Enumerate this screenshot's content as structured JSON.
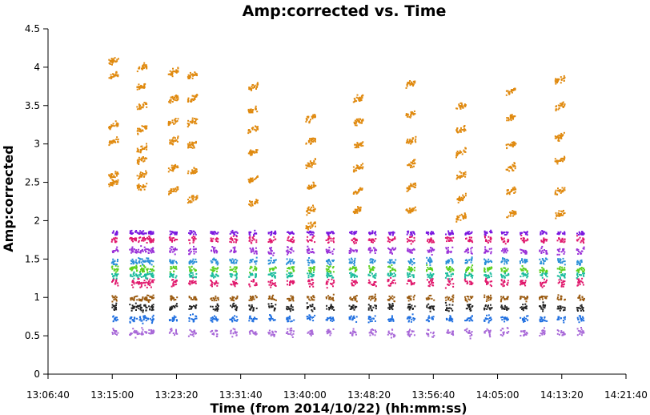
{
  "chart_data": {
    "type": "scatter",
    "title": "Amp:corrected vs. Time",
    "xlabel": "Time (from 2014/10/22) (hh:mm:ss)",
    "ylabel": "Amp:corrected",
    "xlim": [
      "13:06:40",
      "14:21:40"
    ],
    "ylim": [
      0,
      4.5
    ],
    "grid": false,
    "legend": "none",
    "x_ticks": [
      "13:06:40",
      "13:15:00",
      "13:23:20",
      "13:31:40",
      "13:40:00",
      "13:48:20",
      "13:56:40",
      "14:05:00",
      "14:13:20",
      "14:21:40"
    ],
    "y_ticks": [
      "0",
      "0.5",
      "1",
      "1.5",
      "2",
      "2.5",
      "3",
      "3.5",
      "4",
      "4.5"
    ],
    "scans": [
      {
        "start": "13:14:50",
        "end": "13:15:20"
      },
      {
        "start": "13:17:10",
        "end": "13:20:20"
      },
      {
        "start": "13:22:20",
        "end": "13:23:20"
      },
      {
        "start": "13:24:50",
        "end": "13:25:50"
      },
      {
        "start": "13:27:40",
        "end": "13:28:40"
      },
      {
        "start": "13:30:10",
        "end": "13:31:10"
      },
      {
        "start": "13:32:40",
        "end": "13:33:40"
      },
      {
        "start": "13:35:10",
        "end": "13:36:10"
      },
      {
        "start": "13:37:30",
        "end": "13:38:30"
      },
      {
        "start": "13:40:10",
        "end": "13:41:10"
      },
      {
        "start": "13:42:40",
        "end": "13:43:40"
      },
      {
        "start": "13:45:40",
        "end": "13:46:40"
      },
      {
        "start": "13:48:10",
        "end": "13:49:10"
      },
      {
        "start": "13:50:40",
        "end": "13:51:40"
      },
      {
        "start": "13:53:10",
        "end": "13:54:10"
      },
      {
        "start": "13:55:40",
        "end": "13:56:40"
      },
      {
        "start": "13:58:10",
        "end": "13:59:10"
      },
      {
        "start": "14:00:40",
        "end": "14:01:40"
      },
      {
        "start": "14:03:10",
        "end": "14:04:10"
      },
      {
        "start": "14:05:20",
        "end": "14:06:20"
      },
      {
        "start": "14:07:50",
        "end": "14:08:50"
      },
      {
        "start": "14:10:20",
        "end": "14:11:20"
      },
      {
        "start": "14:12:40",
        "end": "14:13:40"
      },
      {
        "start": "14:15:10",
        "end": "14:16:10"
      }
    ],
    "baselines": [
      {
        "color": "#a868d8",
        "center": 0.55,
        "spread": 0.08
      },
      {
        "color": "#1f6fe0",
        "center": 0.73,
        "spread": 0.07
      },
      {
        "color": "#222222",
        "center": 0.88,
        "spread": 0.07
      },
      {
        "color": "#9a5a10",
        "center": 1.0,
        "spread": 0.06
      },
      {
        "color": "#e0186c",
        "center": 1.2,
        "spread": 0.08
      },
      {
        "color": "#1abc9c",
        "center": 1.3,
        "spread": 0.06
      },
      {
        "color": "#5bd020",
        "center": 1.38,
        "spread": 0.06
      },
      {
        "color": "#2a8fd8",
        "center": 1.48,
        "spread": 0.06
      },
      {
        "color": "#9a30d8",
        "center": 1.62,
        "spread": 0.07
      },
      {
        "color": "#e0186c",
        "center": 1.76,
        "spread": 0.06
      },
      {
        "color": "#7a18e0",
        "center": 1.85,
        "spread": 0.04
      }
    ],
    "orange_series": {
      "color": "#e08a10",
      "scans": [
        {
          "t": "13:15:05",
          "levels": [
            4.1,
            3.9,
            3.25,
            3.05,
            2.6,
            2.5
          ]
        },
        {
          "t": "13:18:45",
          "levels": [
            4.0,
            3.75,
            3.5,
            3.2,
            2.95,
            2.8,
            2.6,
            2.45
          ]
        },
        {
          "t": "13:22:50",
          "levels": [
            3.95,
            3.6,
            3.3,
            3.05,
            2.7,
            2.4
          ]
        },
        {
          "t": "13:25:20",
          "levels": [
            3.9,
            3.6,
            3.3,
            3.0,
            2.65,
            2.3
          ]
        },
        {
          "t": "13:33:10",
          "levels": [
            3.75,
            3.45,
            3.2,
            2.9,
            2.55,
            2.25
          ]
        },
        {
          "t": "13:40:40",
          "levels": [
            3.35,
            3.05,
            2.75,
            2.45,
            2.15,
            1.95
          ]
        },
        {
          "t": "13:46:50",
          "levels": [
            3.6,
            3.3,
            3.0,
            2.7,
            2.4,
            2.15
          ]
        },
        {
          "t": "13:53:40",
          "levels": [
            3.8,
            3.4,
            3.05,
            2.75,
            2.45,
            2.15
          ]
        },
        {
          "t": "14:00:10",
          "levels": [
            3.5,
            3.2,
            2.9,
            2.6,
            2.3,
            2.05
          ]
        },
        {
          "t": "14:06:40",
          "levels": [
            3.7,
            3.35,
            3.0,
            2.7,
            2.4,
            2.1
          ]
        },
        {
          "t": "14:13:00",
          "levels": [
            3.85,
            3.5,
            3.1,
            2.8,
            2.4,
            2.1
          ]
        }
      ]
    }
  }
}
